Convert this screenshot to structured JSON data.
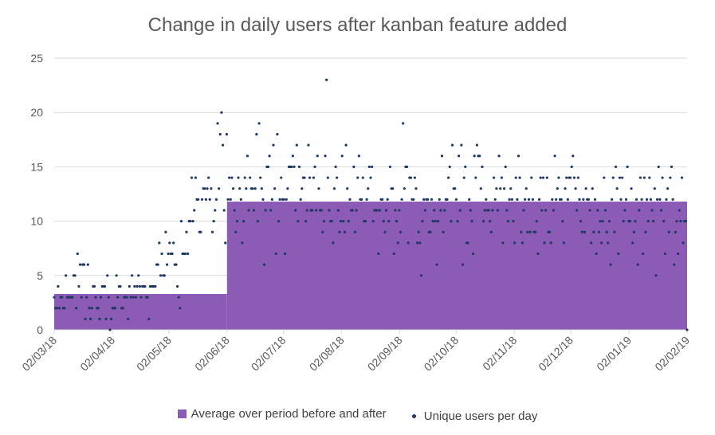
{
  "chart_data": {
    "type": "scatter",
    "title": "Change in daily users after kanban feature added",
    "ylim": [
      0,
      25
    ],
    "yticks": [
      0,
      5,
      10,
      15,
      20,
      25
    ],
    "x_ticks": [
      "02/03/18",
      "02/04/18",
      "02/05/18",
      "02/06/18",
      "02/07/18",
      "02/08/18",
      "02/09/18",
      "02/10/18",
      "02/11/18",
      "02/12/18",
      "02/01/19",
      "02/02/19"
    ],
    "grid": true,
    "legend_position": "bottom",
    "colors": {
      "area": "#8b5bb5",
      "points": "#1f3864",
      "grid": "#d9d9d9",
      "axis_text": "#595959"
    },
    "series": [
      {
        "name": "Average over period before and after",
        "kind": "area",
        "segments": [
          {
            "from": "02/03/18",
            "to": "02/06/18",
            "value": 3.3
          },
          {
            "from": "02/06/18",
            "to": "02/02/19",
            "value": 11.8
          }
        ]
      },
      {
        "name": "Unique users per day",
        "kind": "scatter",
        "start": "02/03/18",
        "end": "02/02/19",
        "values": [
          3,
          2,
          2,
          4,
          2,
          3,
          3,
          2,
          2,
          5,
          3,
          3,
          3,
          3,
          3,
          5,
          5,
          2,
          7,
          4,
          6,
          3,
          6,
          6,
          1,
          3,
          6,
          2,
          1,
          2,
          4,
          4,
          3,
          2,
          2,
          1,
          3,
          4,
          4,
          4,
          1,
          5,
          3,
          0,
          1,
          2,
          2,
          2,
          5,
          3,
          4,
          4,
          2,
          2,
          3,
          3,
          3,
          1,
          4,
          3,
          5,
          3,
          4,
          3,
          4,
          5,
          4,
          3,
          4,
          4,
          4,
          3,
          3,
          1,
          4,
          4,
          4,
          4,
          4,
          6,
          6,
          8,
          5,
          7,
          5,
          5,
          9,
          6,
          7,
          8,
          7,
          7,
          8,
          6,
          6,
          4,
          3,
          2,
          10,
          7,
          7,
          7,
          9,
          7,
          10,
          10,
          14,
          10,
          11,
          14,
          12,
          12,
          9,
          9,
          12,
          13,
          13,
          12,
          13,
          14,
          12,
          13,
          9,
          10,
          11,
          12,
          19,
          13,
          18,
          20,
          17,
          11,
          8,
          18,
          12,
          14,
          12,
          14,
          13,
          11,
          9,
          10,
          14,
          13,
          12,
          8,
          10,
          14,
          13,
          16,
          11,
          14,
          13,
          13,
          11,
          13,
          18,
          10,
          19,
          14,
          13,
          12,
          6,
          11,
          15,
          15,
          16,
          11,
          12,
          17,
          13,
          7,
          18,
          10,
          12,
          14,
          12,
          12,
          7,
          12,
          13,
          15,
          15,
          15,
          16,
          15,
          11,
          17,
          10,
          15,
          12,
          13,
          14,
          14,
          10,
          11,
          17,
          14,
          11,
          11,
          14,
          15,
          11,
          16,
          13,
          11,
          11,
          9,
          10,
          16,
          23,
          14,
          11,
          10,
          10,
          8,
          13,
          15,
          14,
          11,
          9,
          10,
          16,
          10,
          9,
          17,
          13,
          10,
          12,
          11,
          11,
          15,
          9,
          11,
          14,
          16,
          12,
          12,
          14,
          10,
          10,
          12,
          13,
          15,
          14,
          15,
          10,
          11,
          11,
          11,
          7,
          11,
          12,
          12,
          10,
          9,
          11,
          12,
          10,
          15,
          13,
          13,
          7,
          11,
          10,
          8,
          11,
          9,
          12,
          19,
          13,
          15,
          15,
          8,
          14,
          14,
          12,
          12,
          14,
          13,
          8,
          9,
          8,
          5,
          10,
          12,
          11,
          12,
          12,
          9,
          9,
          12,
          10,
          11,
          10,
          6,
          10,
          12,
          11,
          16,
          9,
          11,
          12,
          12,
          14,
          15,
          10,
          17,
          13,
          13,
          12,
          10,
          16,
          11,
          17,
          6,
          14,
          15,
          8,
          8,
          12,
          11,
          10,
          7,
          16,
          14,
          17,
          16,
          16,
          13,
          15,
          10,
          11,
          12,
          11,
          11,
          10,
          9,
          11,
          14,
          12,
          13,
          11,
          16,
          13,
          14,
          8,
          13,
          15,
          11,
          10,
          12,
          13,
          12,
          10,
          8,
          14,
          12,
          16,
          14,
          9,
          8,
          11,
          12,
          13,
          9,
          12,
          9,
          14,
          12,
          9,
          9,
          10,
          7,
          12,
          14,
          11,
          14,
          8,
          11,
          14,
          9,
          9,
          8,
          12,
          11,
          16,
          12,
          13,
          14,
          12,
          12,
          10,
          8,
          13,
          14,
          12,
          14,
          14,
          15,
          16,
          14,
          13,
          11,
          14,
          12,
          10,
          9,
          12,
          9,
          13,
          12,
          12,
          11,
          8,
          13,
          9,
          12,
          7,
          11,
          9,
          10,
          8,
          10,
          14,
          11,
          9,
          8,
          10,
          6,
          12,
          14,
          9,
          15,
          13,
          7,
          14,
          12,
          14,
          10,
          11,
          12,
          15,
          10,
          10,
          13,
          8,
          9,
          10,
          12,
          6,
          11,
          14,
          12,
          7,
          14,
          9,
          12,
          10,
          14,
          12,
          11,
          10,
          13,
          5,
          12,
          15,
          12,
          11,
          14,
          10,
          7,
          12,
          13,
          9,
          14,
          15,
          12,
          6,
          9,
          10,
          7,
          11,
          10,
          14,
          8,
          10,
          10,
          0
        ]
      }
    ]
  }
}
